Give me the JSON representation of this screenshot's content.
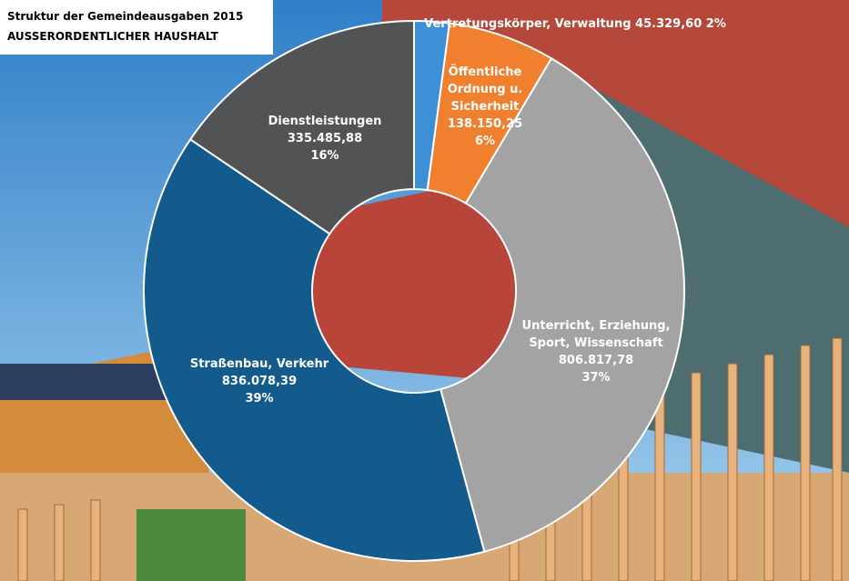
{
  "chart_data": {
    "type": "donut",
    "title": "Struktur der Gemeindeausgaben 2015",
    "subtitle": "AUSSERORDENTLICHER HAUSHALT",
    "categories": [
      [
        "Vertretungskörper, Verwaltung"
      ],
      [
        "Öffentliche",
        "Ordnung u.",
        "Sicherheit"
      ],
      [
        "Unterricht, Erziehung,",
        "Sport, Wissenschaft"
      ],
      [
        "Straßenbau, Verkehr"
      ],
      [
        "Dienstleistungen"
      ]
    ],
    "values": [
      45329.6,
      138150.25,
      806817.78,
      836078.39,
      335485.88
    ],
    "value_labels": [
      "45.329,60",
      "138.150,25",
      "806.817,78",
      "836.078,39",
      "335.485,88"
    ],
    "percentages": [
      2,
      6,
      37,
      39,
      16
    ],
    "percentage_labels": [
      "2%",
      "6%",
      "37%",
      "39%",
      "16%"
    ],
    "colors": [
      "#3d8fd6",
      "#f07f2e",
      "#a3a3a3",
      "#135b8c",
      "#525354"
    ]
  }
}
